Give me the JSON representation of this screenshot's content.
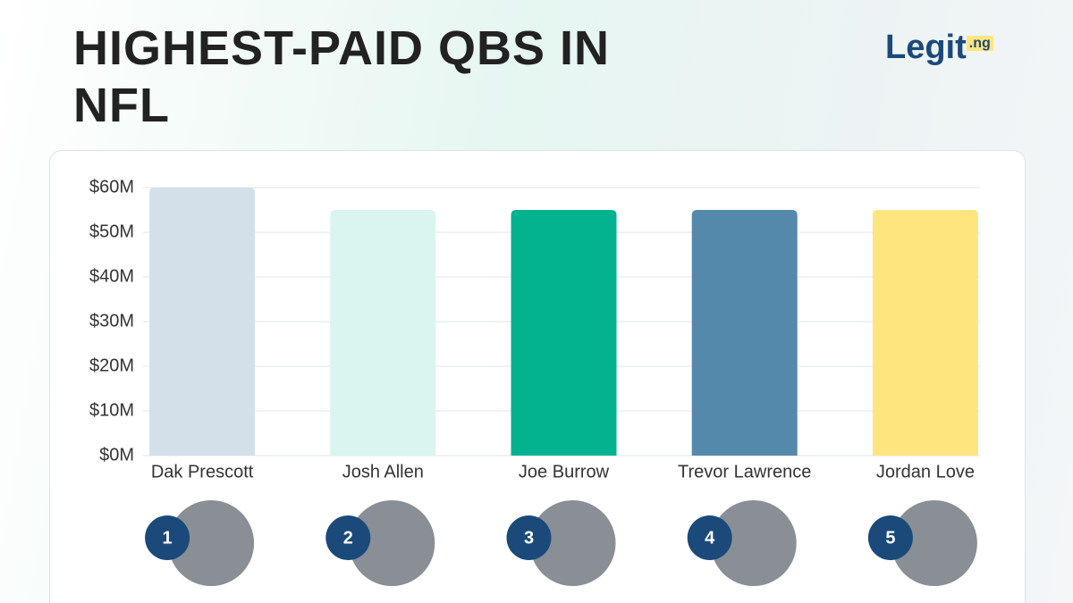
{
  "chart_data": {
    "type": "bar",
    "title": "HIGHEST-PAID QBS IN NFL",
    "logo": "Legit",
    "logo_suffix": ".ng",
    "categories": [
      "Dak Prescott",
      "Josh Allen",
      "Joe Burrow",
      "Trevor Lawrence",
      "Jordan Love"
    ],
    "values": [
      60,
      55,
      55,
      55,
      55
    ],
    "colors": [
      "#d3e0ea",
      "#daf5f0",
      "#03b38f",
      "#5589ab",
      "#fee57e"
    ],
    "ranks": [
      1,
      2,
      3,
      4,
      5
    ],
    "ylim": [
      0,
      60
    ],
    "yticks": [
      {
        "value": 0,
        "label": "$0M"
      },
      {
        "value": 10,
        "label": "$10M"
      },
      {
        "value": 20,
        "label": "$20M"
      },
      {
        "value": 30,
        "label": "$30M"
      },
      {
        "value": 40,
        "label": "$40M"
      },
      {
        "value": 50,
        "label": "$50M"
      },
      {
        "value": 60,
        "label": "$60M"
      }
    ],
    "grid": true
  }
}
